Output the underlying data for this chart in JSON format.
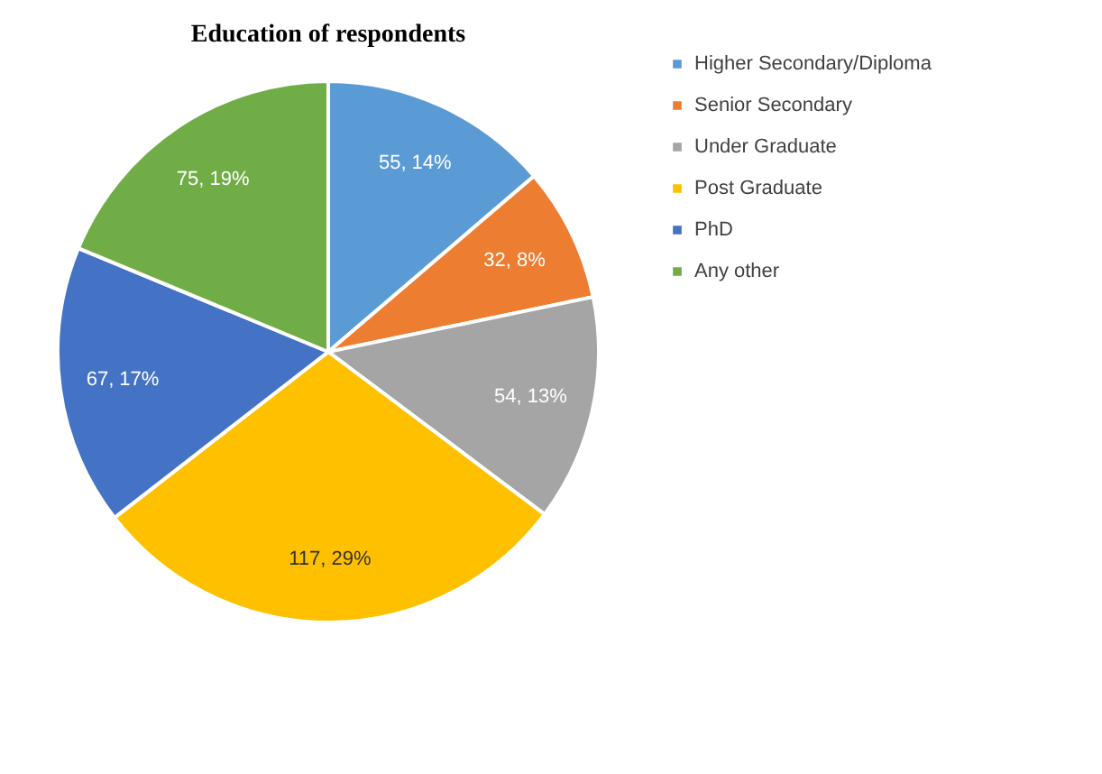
{
  "chart_data": {
    "type": "pie",
    "title": "Education of respondents",
    "categories": [
      "Higher Secondary/Diploma",
      "Senior Secondary",
      "Under Graduate",
      "Post Graduate",
      "PhD",
      "Any other"
    ],
    "values": [
      55,
      32,
      54,
      117,
      67,
      75
    ],
    "colors": [
      "#5b9bd5",
      "#ed7d31",
      "#a5a5a5",
      "#ffc000",
      "#4472c4",
      "#70ad47"
    ],
    "value_labels": [
      "55, 14%",
      "32, 8%",
      "54, 13%",
      "117, 29%",
      "67, 17%",
      "75, 19%"
    ],
    "legend": "right"
  }
}
